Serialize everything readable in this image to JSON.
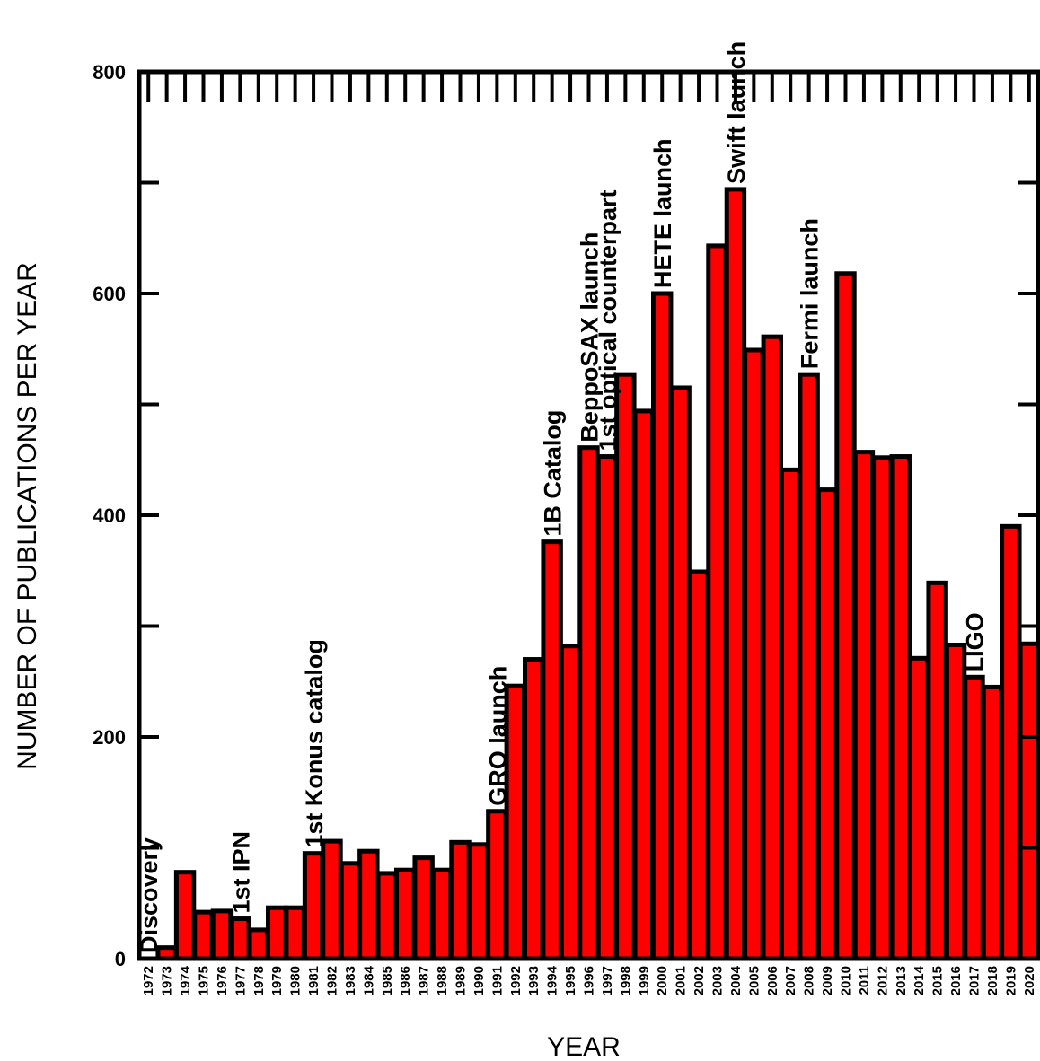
{
  "chart_data": {
    "type": "bar",
    "title": "",
    "xlabel": "YEAR",
    "ylabel": "NUMBER OF PUBLICATIONS PER YEAR",
    "ylim": [
      0,
      800
    ],
    "yticks": [
      "0",
      "200",
      "400",
      "600",
      "800"
    ],
    "categories": [
      "1972",
      "1973",
      "1974",
      "1975",
      "1976",
      "1977",
      "1978",
      "1979",
      "1980",
      "1981",
      "1982",
      "1983",
      "1984",
      "1985",
      "1986",
      "1987",
      "1988",
      "1989",
      "1990",
      "1991",
      "1992",
      "1993",
      "1994",
      "1995",
      "1996",
      "1997",
      "1998",
      "1999",
      "2000",
      "2001",
      "2002",
      "2003",
      "2004",
      "2005",
      "2006",
      "2007",
      "2008",
      "2009",
      "2010",
      "2011",
      "2012",
      "2013",
      "2014",
      "2015",
      "2016",
      "2017",
      "2018",
      "2019",
      "2020"
    ],
    "values": [
      0,
      10,
      78,
      42,
      43,
      36,
      26,
      46,
      46,
      95,
      106,
      86,
      97,
      77,
      80,
      91,
      80,
      105,
      103,
      133,
      246,
      270,
      376,
      282,
      461,
      453,
      527,
      494,
      600,
      515,
      349,
      643,
      694,
      549,
      561,
      441,
      527,
      423,
      618,
      457,
      452,
      453,
      271,
      339,
      283,
      254,
      245,
      390,
      284
    ],
    "bar_color": "#ff0000",
    "edge_color": "#000000",
    "grid": false,
    "annotations": [
      {
        "text": "Discovery",
        "year": "1972"
      },
      {
        "text": "1st IPN",
        "year": "1977"
      },
      {
        "text": "1st Konus catalog",
        "year": "1981"
      },
      {
        "text": "GRO launch",
        "year": "1991"
      },
      {
        "text": "1B Catalog",
        "year": "1994"
      },
      {
        "text": "BeppoSAX launch",
        "year": "1996"
      },
      {
        "text": "1st optical counterpart",
        "year": "1997"
      },
      {
        "text": "HETE launch",
        "year": "2000"
      },
      {
        "text": "Swift launch",
        "year": "2004"
      },
      {
        "text": "Fermi launch",
        "year": "2008"
      },
      {
        "text": "LIGO",
        "year": "2017"
      }
    ]
  }
}
